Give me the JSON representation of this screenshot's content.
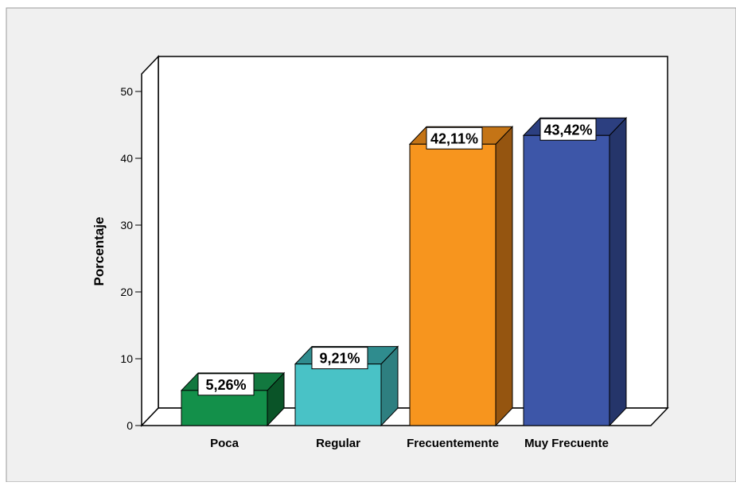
{
  "chart_data": {
    "type": "bar",
    "three_d": true,
    "categories": [
      "Poca",
      "Regular",
      "Frecuentemente",
      "Muy Frecuente"
    ],
    "values": [
      5.26,
      9.21,
      42.11,
      43.42
    ],
    "data_labels": [
      "5,26%",
      "9,21%",
      "42,11%",
      "43,42%"
    ],
    "ylabel": "Porcentaje",
    "xlabel": "",
    "ylim": [
      0,
      50
    ],
    "yticks": [
      "0",
      "10",
      "20",
      "30",
      "40",
      "50"
    ],
    "grid": false,
    "legend": "none",
    "colors": {
      "fronts": [
        "#13904a",
        "#49c2c6",
        "#f7951e",
        "#3d56a8"
      ],
      "tops": [
        "#12783f",
        "#2f8c8e",
        "#c47416",
        "#2c3f80"
      ],
      "sides": [
        "#0a5428",
        "#2e7f80",
        "#955510",
        "#25356a"
      ],
      "background": "#f0f0f0",
      "wall": "#ffffff",
      "border": "#000000"
    }
  }
}
